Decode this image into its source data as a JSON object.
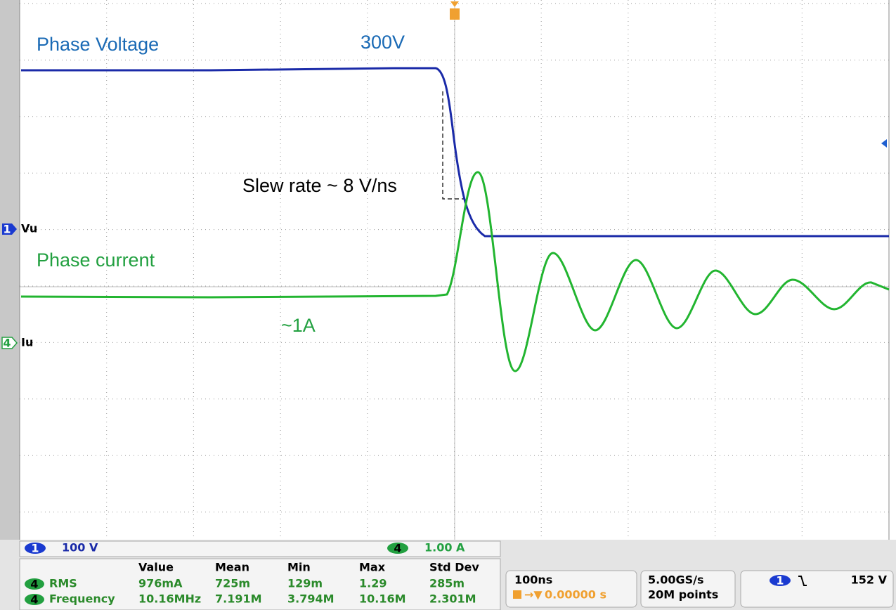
{
  "annotations": {
    "phase_voltage": "Phase Voltage",
    "voltage_level": "300V",
    "slew_rate": "Slew rate ~ 8 V/ns",
    "phase_current": "Phase current",
    "current_level": "~1A"
  },
  "channel_labels": [
    {
      "channel": "1",
      "name": "Vu"
    },
    {
      "channel": "4",
      "name": "Iu"
    }
  ],
  "channel_scales": [
    {
      "channel": "1",
      "scale": "100 V"
    },
    {
      "channel": "4",
      "scale": "1.00 A"
    }
  ],
  "measurements": {
    "headers": [
      "Value",
      "Mean",
      "Min",
      "Max",
      "Std Dev"
    ],
    "rows": [
      {
        "channel": "4",
        "name": "RMS",
        "cells": [
          "976mA",
          "725m",
          "129m",
          "1.29",
          "285m"
        ]
      },
      {
        "channel": "4",
        "name": "Frequency",
        "cells": [
          "10.16MHz",
          "7.191M",
          "3.794M",
          "10.16M",
          "2.301M"
        ]
      }
    ]
  },
  "timebase": {
    "scale": "100ns",
    "position": "0.00000 s"
  },
  "acquisition": {
    "rate": "5.00GS/s",
    "length": "20M points"
  },
  "trigger": {
    "channel": "1",
    "level": "152 V"
  }
}
